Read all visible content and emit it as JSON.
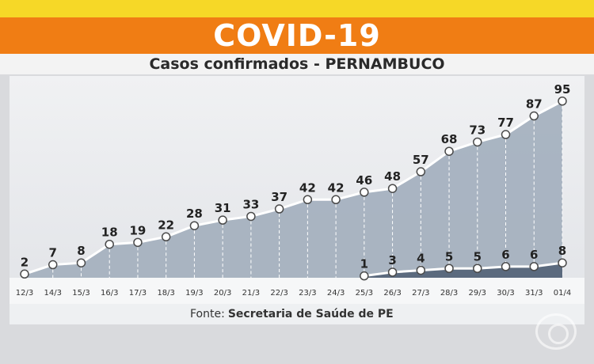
{
  "header": {
    "title": "COVID-19",
    "subtitle": "Casos confirmados - PERNAMBUCO"
  },
  "footer": {
    "source_label": "Fonte:",
    "source_value": "Secretaria de Saúde de PE"
  },
  "colors": {
    "banner": "#f07d14",
    "topbar": "#f6d827",
    "area_main": "#9ba8b8",
    "area_second": "#5e6d80",
    "line": "#ffffff"
  },
  "chart_data": {
    "type": "area",
    "categories": [
      "12/3",
      "14/3",
      "15/3",
      "16/3",
      "17/3",
      "18/3",
      "19/3",
      "20/3",
      "21/3",
      "22/3",
      "23/3",
      "24/3",
      "25/3",
      "26/3",
      "27/3",
      "28/3",
      "29/3",
      "30/3",
      "31/3",
      "01/4"
    ],
    "series": [
      {
        "values": [
          2,
          7,
          8,
          18,
          19,
          22,
          28,
          31,
          33,
          37,
          42,
          42,
          46,
          48,
          57,
          68,
          73,
          77,
          87,
          95
        ]
      },
      {
        "values": [
          null,
          null,
          null,
          null,
          null,
          null,
          null,
          null,
          null,
          null,
          null,
          null,
          1,
          3,
          4,
          5,
          5,
          6,
          6,
          8
        ]
      }
    ],
    "ylim": [
      0,
      100
    ],
    "grid": false,
    "legend": "none"
  }
}
